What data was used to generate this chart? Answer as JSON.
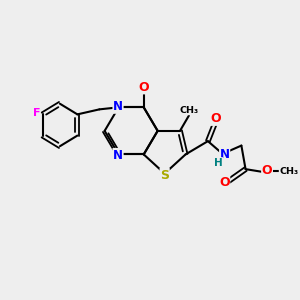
{
  "background_color": "#eeeeee",
  "bond_color": "#000000",
  "atom_colors": {
    "F": "#ff00ff",
    "N": "#0000ff",
    "O": "#ff0000",
    "S": "#aaaa00",
    "H": "#008080",
    "C": "#000000"
  },
  "figsize": [
    3.0,
    3.0
  ],
  "dpi": 100
}
